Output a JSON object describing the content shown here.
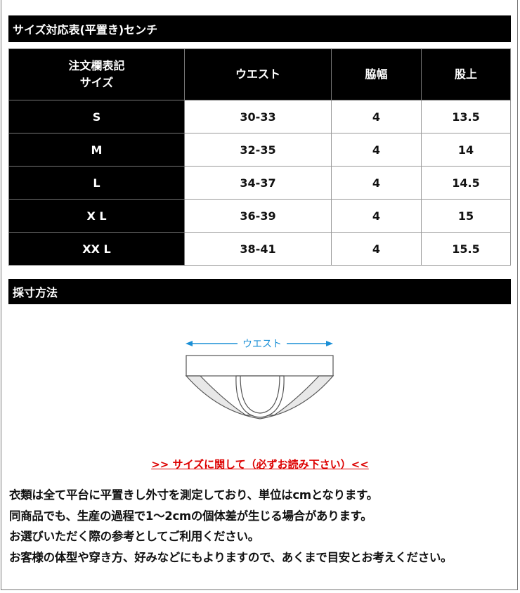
{
  "size_section": {
    "title": "サイズ対応表(平置き)センチ"
  },
  "table": {
    "headers": [
      "注文欄表記\nサイズ",
      "ウエスト",
      "脇幅",
      "股上"
    ],
    "header_line1": "注文欄表記",
    "header_line2": "サイズ",
    "rows": [
      {
        "size": "S",
        "waist": "30-33",
        "side": "4",
        "rise": "13.5"
      },
      {
        "size": "M",
        "waist": "32-35",
        "side": "4",
        "rise": "14"
      },
      {
        "size": "L",
        "waist": "34-37",
        "side": "4",
        "rise": "14.5"
      },
      {
        "size": "X L",
        "waist": "36-39",
        "side": "4",
        "rise": "15"
      },
      {
        "size": "XX L",
        "waist": "38-41",
        "side": "4",
        "rise": "15.5"
      }
    ]
  },
  "measure_section": {
    "title": "採寸方法",
    "diagram_label": "ウエスト",
    "arrow_color": "#1a8fd6"
  },
  "notice": {
    "text": ">> サイズに関して（必ずお読み下さい）<<",
    "color": "#dd0000"
  },
  "body_lines": [
    "衣類は全て平台に平置きし外寸を測定しており、単位はcmとなります。",
    "同商品でも、生産の過程で1～2cmの個体差が生じる場合があります。",
    "お選びいただく際の参考としてご利用ください。",
    "お客様の体型や穿き方、好みなどにもよりますので、あくまで目安とお考えください。"
  ]
}
